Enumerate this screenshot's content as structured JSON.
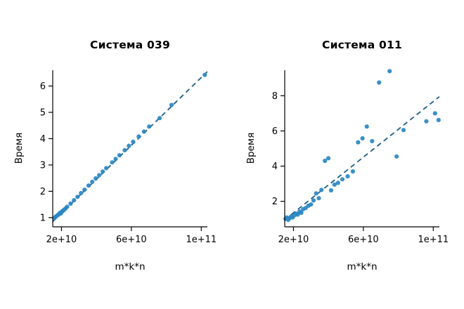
{
  "figure": {
    "background": "#ffffff",
    "text_color": "#000000"
  },
  "chart_data": [
    {
      "type": "scatter",
      "title": "Система 039",
      "xlabel": "m*k*n",
      "ylabel": "Время",
      "xlim": [
        15000000000.0,
        103500000000.0
      ],
      "ylim": [
        0.65,
        6.6
      ],
      "xticks": [
        20000000000.0,
        60000000000.0,
        100000000000.0
      ],
      "xtick_labels": [
        "2e+10",
        "6e+10",
        "1e+11"
      ],
      "yticks": [
        1,
        2,
        3,
        4,
        5,
        6
      ],
      "grid": false,
      "legend": "none",
      "point_color": "#2a87c2",
      "line_color": "#1b5e82",
      "trend_line": {
        "style": "dashed",
        "x1": 15000000000.0,
        "y1": 0.85,
        "x2": 103500000000.0,
        "y2": 6.55
      },
      "points": [
        [
          16000000000.0,
          0.98
        ],
        [
          16600000000.0,
          1.03
        ],
        [
          17200000000.0,
          1.06
        ],
        [
          18000000000.0,
          1.1
        ],
        [
          18600000000.0,
          1.13
        ],
        [
          19200000000.0,
          1.18
        ],
        [
          19700000000.0,
          1.16
        ],
        [
          20200000000.0,
          1.22
        ],
        [
          20800000000.0,
          1.26
        ],
        [
          21400000000.0,
          1.29
        ],
        [
          22200000000.0,
          1.34
        ],
        [
          23200000000.0,
          1.41
        ],
        [
          25200000000.0,
          1.53
        ],
        [
          27200000000.0,
          1.66
        ],
        [
          29200000000.0,
          1.79
        ],
        [
          31200000000.0,
          1.93
        ],
        [
          33200000000.0,
          2.06
        ],
        [
          35500000000.0,
          2.22
        ],
        [
          37600000000.0,
          2.36
        ],
        [
          39600000000.0,
          2.49
        ],
        [
          41600000000.0,
          2.61
        ],
        [
          43600000000.0,
          2.75
        ],
        [
          45600000000.0,
          2.88
        ],
        [
          49000000000.0,
          3.1
        ],
        [
          51000000000.0,
          3.23
        ],
        [
          53200000000.0,
          3.37
        ],
        [
          56200000000.0,
          3.56
        ],
        [
          58600000000.0,
          3.73
        ],
        [
          61000000000.0,
          3.88
        ],
        [
          64200000000.0,
          4.08
        ],
        [
          67200000000.0,
          4.27
        ],
        [
          70200000000.0,
          4.46
        ],
        [
          76200000000.0,
          4.78
        ],
        [
          83000000000.0,
          5.28
        ],
        [
          102000000000.0,
          6.42
        ]
      ]
    },
    {
      "type": "scatter",
      "title": "Система 011",
      "xlabel": "m*k*n",
      "ylabel": "Время",
      "xlim": [
        15000000000.0,
        103500000000.0
      ],
      "ylim": [
        0.55,
        9.45
      ],
      "xticks": [
        20000000000.0,
        60000000000.0,
        100000000000.0
      ],
      "xtick_labels": [
        "2e+10",
        "6e+10",
        "1e+11"
      ],
      "yticks": [
        2,
        4,
        6,
        8
      ],
      "grid": false,
      "legend": "none",
      "point_color": "#2a87c2",
      "line_color": "#1b5e82",
      "trend_line": {
        "style": "dashed",
        "x1": 15000000000.0,
        "y1": 0.95,
        "x2": 103500000000.0,
        "y2": 7.95
      },
      "points": [
        [
          15500000000.0,
          1.0
        ],
        [
          16200000000.0,
          1.08
        ],
        [
          17000000000.0,
          0.95
        ],
        [
          17800000000.0,
          1.05
        ],
        [
          18800000000.0,
          1.15
        ],
        [
          19500000000.0,
          1.08
        ],
        [
          20500000000.0,
          1.2
        ],
        [
          21500000000.0,
          1.3
        ],
        [
          22500000000.0,
          1.25
        ],
        [
          23500000000.0,
          1.42
        ],
        [
          24500000000.0,
          1.35
        ],
        [
          25500000000.0,
          1.55
        ],
        [
          27000000000.0,
          1.62
        ],
        [
          28500000000.0,
          1.75
        ],
        [
          30000000000.0,
          1.82
        ],
        [
          31500000000.0,
          2.05
        ],
        [
          33000000000.0,
          2.45
        ],
        [
          34500000000.0,
          2.18
        ],
        [
          36000000000.0,
          2.65
        ],
        [
          38000000000.0,
          4.3
        ],
        [
          40000000000.0,
          4.45
        ],
        [
          41500000000.0,
          2.62
        ],
        [
          43500000000.0,
          2.95
        ],
        [
          45500000000.0,
          3.05
        ],
        [
          48000000000.0,
          3.25
        ],
        [
          51000000000.0,
          3.42
        ],
        [
          54000000000.0,
          3.7
        ],
        [
          57000000000.0,
          5.35
        ],
        [
          59500000000.0,
          5.58
        ],
        [
          62000000000.0,
          6.25
        ],
        [
          65000000000.0,
          5.42
        ],
        [
          69000000000.0,
          8.75
        ],
        [
          75000000000.0,
          9.4
        ],
        [
          79000000000.0,
          4.55
        ],
        [
          83000000000.0,
          6.05
        ],
        [
          96000000000.0,
          6.55
        ],
        [
          101000000000.0,
          7.0
        ],
        [
          103000000000.0,
          6.62
        ]
      ]
    }
  ]
}
